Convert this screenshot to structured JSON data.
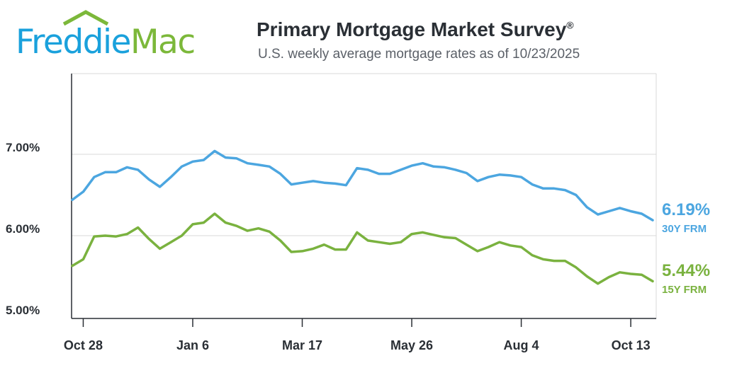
{
  "header": {
    "logo": {
      "text": "FreddieMac",
      "word1": "Freddie",
      "word2": "Mac"
    },
    "title": "Primary Mortgage Market Survey",
    "title_mark": "®",
    "subtitle": "U.S. weekly average mortgage rates as of 10/23/2025"
  },
  "colors": {
    "series_30y": "#4ca6e0",
    "series_15y": "#7ab23f",
    "logo_blue": "#1aa1dc",
    "logo_green": "#7cb83a",
    "text": "#2a2f35",
    "grid": "#d8d8d8"
  },
  "chart_data": {
    "type": "line",
    "title": "Primary Mortgage Market Survey",
    "subtitle": "U.S. weekly average mortgage rates as of 10/23/2025",
    "xlabel": "",
    "ylabel": "",
    "ylim": [
      5.0,
      7.0
    ],
    "y_ticks": [
      "5.00%",
      "6.00%",
      "7.00%"
    ],
    "x_ticks": [
      "Oct 28",
      "Jan 6",
      "Mar 17",
      "May 26",
      "Aug 4",
      "Oct 13"
    ],
    "grid": "horizontal",
    "series": [
      {
        "name": "30Y FRM",
        "end_label": "6.19%",
        "values": [
          6.44,
          6.54,
          6.72,
          6.78,
          6.78,
          6.84,
          6.81,
          6.69,
          6.6,
          6.72,
          6.85,
          6.91,
          6.93,
          7.04,
          6.96,
          6.95,
          6.89,
          6.87,
          6.85,
          6.76,
          6.63,
          6.65,
          6.67,
          6.65,
          6.64,
          6.62,
          6.83,
          6.81,
          6.76,
          6.76,
          6.81,
          6.86,
          6.89,
          6.85,
          6.84,
          6.81,
          6.77,
          6.67,
          6.72,
          6.75,
          6.74,
          6.72,
          6.63,
          6.58,
          6.58,
          6.56,
          6.5,
          6.35,
          6.26,
          6.3,
          6.34,
          6.3,
          6.27,
          6.19
        ]
      },
      {
        "name": "15Y FRM",
        "end_label": "5.44%",
        "values": [
          5.63,
          5.71,
          5.99,
          6.0,
          5.99,
          6.02,
          6.1,
          5.96,
          5.84,
          5.92,
          6.0,
          6.14,
          6.16,
          6.27,
          6.16,
          6.12,
          6.06,
          6.09,
          6.05,
          5.94,
          5.8,
          5.81,
          5.84,
          5.89,
          5.83,
          5.83,
          6.04,
          5.94,
          5.92,
          5.9,
          5.92,
          6.02,
          6.04,
          6.01,
          5.98,
          5.97,
          5.89,
          5.81,
          5.86,
          5.92,
          5.88,
          5.86,
          5.76,
          5.71,
          5.69,
          5.69,
          5.61,
          5.5,
          5.41,
          5.49,
          5.55,
          5.53,
          5.52,
          5.44
        ]
      }
    ]
  }
}
